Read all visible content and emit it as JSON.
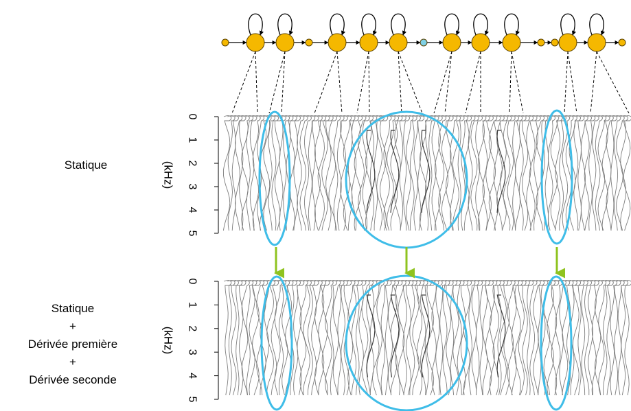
{
  "panels": [
    {
      "label_lines": [
        "Statique"
      ],
      "axis_label": "(kHz)",
      "ticks": [
        "0",
        "1",
        "2",
        "3",
        "4",
        "5"
      ]
    },
    {
      "label_lines": [
        "Statique",
        "+",
        "Dérivée première",
        "+",
        "Dérivée seconde"
      ],
      "axis_label": "(kHz)",
      "ticks": [
        "0",
        "1",
        "2",
        "3",
        "4",
        "5"
      ]
    }
  ],
  "colors": {
    "state_fill": "#f5b800",
    "state_stroke": "#5a4100",
    "entry_exit_fill": "#7fd0e4",
    "highlight": "#3fbde8",
    "arrow": "#8fc31f",
    "spectra": "#7d7d7d",
    "dashed": "#000000"
  },
  "hmm": {
    "nodes": [
      "small",
      "big-loop",
      "big-loop",
      "small",
      "big-loop",
      "big-loop",
      "big-loop",
      "entry",
      "big-loop",
      "big-loop",
      "big-loop",
      "small",
      "small",
      "big-loop",
      "big-loop",
      "small"
    ]
  }
}
